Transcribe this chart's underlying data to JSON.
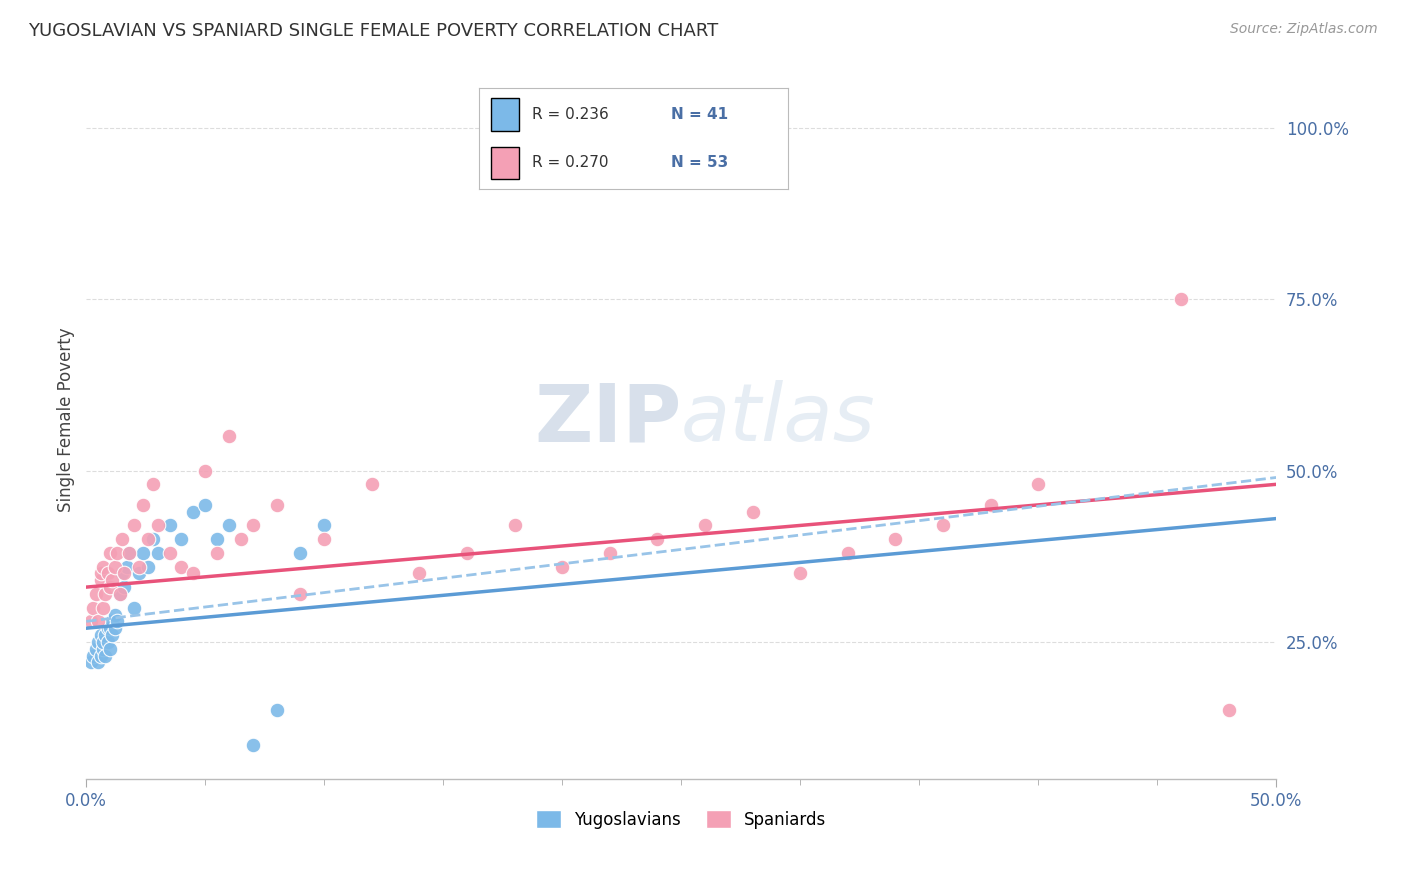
{
  "title": "YUGOSLAVIAN VS SPANIARD SINGLE FEMALE POVERTY CORRELATION CHART",
  "source": "Source: ZipAtlas.com",
  "ylabel": "Single Female Poverty",
  "ytick_labels": [
    "25.0%",
    "50.0%",
    "75.0%",
    "100.0%"
  ],
  "ytick_values": [
    0.25,
    0.5,
    0.75,
    1.0
  ],
  "xlim": [
    0.0,
    0.5
  ],
  "ylim": [
    0.05,
    1.1
  ],
  "legend_label1": "Yugoslavians",
  "legend_label2": "Spaniards",
  "r_yug": 0.236,
  "n_yug": 41,
  "r_spa": 0.27,
  "n_spa": 53,
  "blue_color": "#7CB9E8",
  "pink_color": "#F4A0B5",
  "trendline_blue": "#5B9BD5",
  "trendline_pink": "#E8527A",
  "trendline_blue_dashed": "#99C4E8",
  "watermark_color": "#C8D8EC",
  "background_color": "#FFFFFF",
  "yug_x": [
    0.002,
    0.003,
    0.004,
    0.005,
    0.005,
    0.006,
    0.006,
    0.007,
    0.007,
    0.008,
    0.008,
    0.009,
    0.009,
    0.01,
    0.01,
    0.011,
    0.011,
    0.012,
    0.012,
    0.013,
    0.014,
    0.015,
    0.016,
    0.017,
    0.018,
    0.02,
    0.022,
    0.024,
    0.026,
    0.028,
    0.03,
    0.035,
    0.04,
    0.045,
    0.05,
    0.055,
    0.06,
    0.07,
    0.08,
    0.09,
    0.1
  ],
  "yug_y": [
    0.22,
    0.23,
    0.24,
    0.22,
    0.25,
    0.23,
    0.26,
    0.24,
    0.25,
    0.23,
    0.26,
    0.25,
    0.27,
    0.24,
    0.27,
    0.26,
    0.28,
    0.27,
    0.29,
    0.28,
    0.32,
    0.35,
    0.33,
    0.36,
    0.38,
    0.3,
    0.35,
    0.38,
    0.36,
    0.4,
    0.38,
    0.42,
    0.4,
    0.44,
    0.45,
    0.4,
    0.42,
    0.1,
    0.15,
    0.38,
    0.42
  ],
  "spa_x": [
    0.002,
    0.003,
    0.004,
    0.005,
    0.006,
    0.006,
    0.007,
    0.007,
    0.008,
    0.009,
    0.01,
    0.01,
    0.011,
    0.012,
    0.013,
    0.014,
    0.015,
    0.016,
    0.018,
    0.02,
    0.022,
    0.024,
    0.026,
    0.028,
    0.03,
    0.035,
    0.04,
    0.045,
    0.05,
    0.055,
    0.06,
    0.065,
    0.07,
    0.08,
    0.09,
    0.1,
    0.12,
    0.14,
    0.16,
    0.18,
    0.2,
    0.22,
    0.24,
    0.26,
    0.28,
    0.3,
    0.32,
    0.34,
    0.36,
    0.38,
    0.4,
    0.46,
    0.48
  ],
  "spa_y": [
    0.28,
    0.3,
    0.32,
    0.28,
    0.34,
    0.35,
    0.3,
    0.36,
    0.32,
    0.35,
    0.33,
    0.38,
    0.34,
    0.36,
    0.38,
    0.32,
    0.4,
    0.35,
    0.38,
    0.42,
    0.36,
    0.45,
    0.4,
    0.48,
    0.42,
    0.38,
    0.36,
    0.35,
    0.5,
    0.38,
    0.55,
    0.4,
    0.42,
    0.45,
    0.32,
    0.4,
    0.48,
    0.35,
    0.38,
    0.42,
    0.36,
    0.38,
    0.4,
    0.42,
    0.44,
    0.35,
    0.38,
    0.4,
    0.42,
    0.45,
    0.48,
    0.75,
    0.15
  ]
}
